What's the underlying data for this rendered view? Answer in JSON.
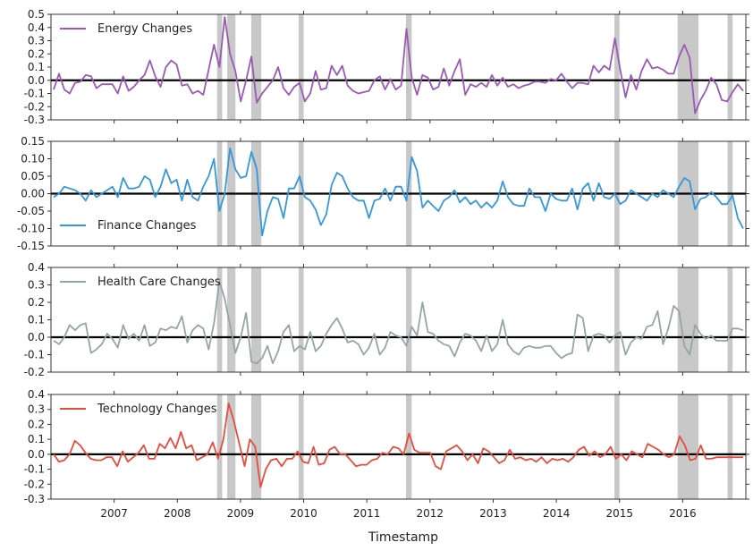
{
  "chart_data": {
    "type": "line",
    "x_axis": {
      "label": "Timestamp",
      "start": 2006.0,
      "end": 2017.0,
      "ticks": [
        "2007",
        "2008",
        "2009",
        "2010",
        "2011",
        "2012",
        "2013",
        "2014",
        "2015",
        "2016"
      ]
    },
    "shaded_periods": [
      [
        2008.63,
        2008.71
      ],
      [
        2008.79,
        2008.92
      ],
      [
        2009.17,
        2009.33
      ],
      [
        2009.92,
        2010.0
      ],
      [
        2011.62,
        2011.71
      ],
      [
        2014.92,
        2015.0
      ],
      [
        2015.92,
        2016.25
      ],
      [
        2016.71,
        2016.79
      ]
    ],
    "zero_line": true,
    "panels": [
      {
        "legend": "Energy Changes",
        "color": "#9b59b6",
        "ylim": [
          -0.3,
          0.5
        ],
        "yticks": [
          "-0.3",
          "-0.2",
          "-0.1",
          "0.0",
          "0.1",
          "0.2",
          "0.3",
          "0.4",
          "0.5"
        ],
        "values": [
          -0.07,
          0.05,
          -0.07,
          -0.1,
          -0.02,
          -0.01,
          0.04,
          0.03,
          -0.06,
          -0.03,
          -0.03,
          -0.03,
          -0.1,
          0.03,
          -0.08,
          -0.05,
          0.0,
          0.04,
          0.15,
          0.03,
          -0.05,
          0.1,
          0.15,
          0.12,
          -0.04,
          -0.03,
          -0.1,
          -0.08,
          -0.11,
          0.08,
          0.27,
          0.1,
          0.48,
          0.2,
          0.07,
          -0.16,
          0.0,
          0.18,
          -0.17,
          -0.1,
          -0.05,
          0.0,
          0.1,
          -0.06,
          -0.11,
          -0.05,
          -0.02,
          -0.16,
          -0.1,
          0.07,
          -0.07,
          -0.06,
          0.11,
          0.04,
          0.11,
          -0.04,
          -0.08,
          -0.1,
          -0.09,
          -0.08,
          0.0,
          0.03,
          -0.07,
          0.01,
          -0.07,
          -0.04,
          0.39,
          0.02,
          -0.11,
          0.04,
          0.02,
          -0.07,
          -0.05,
          0.09,
          -0.04,
          0.07,
          0.16,
          -0.11,
          -0.03,
          -0.05,
          -0.02,
          -0.05,
          0.04,
          -0.04,
          0.02,
          -0.05,
          -0.03,
          -0.06,
          -0.04,
          -0.03,
          -0.01,
          -0.01,
          -0.02,
          0.01,
          0.0,
          0.05,
          -0.01,
          -0.06,
          -0.02,
          -0.02,
          -0.03,
          0.11,
          0.06,
          0.11,
          0.08,
          0.32,
          0.08,
          -0.13,
          0.04,
          -0.07,
          0.07,
          0.16,
          0.09,
          0.1,
          0.08,
          0.05,
          0.05,
          0.18,
          0.27,
          0.17,
          -0.25,
          -0.15,
          -0.08,
          0.02,
          -0.03,
          -0.15,
          -0.16,
          -0.09,
          -0.03,
          -0.08
        ]
      },
      {
        "legend": "Finance Changes",
        "color": "#3498db",
        "ylim": [
          -0.15,
          0.15
        ],
        "yticks": [
          "-0.15",
          "-0.10",
          "-0.05",
          "0.00",
          "0.05",
          "0.10",
          "0.15"
        ],
        "values": [
          -0.01,
          0.0,
          0.02,
          0.015,
          0.01,
          0.0,
          -0.02,
          0.01,
          -0.01,
          0.0,
          0.01,
          0.02,
          -0.01,
          0.045,
          0.015,
          0.015,
          0.02,
          0.05,
          0.04,
          -0.01,
          0.02,
          0.07,
          0.03,
          0.04,
          -0.02,
          0.04,
          -0.01,
          -0.02,
          0.02,
          0.05,
          0.1,
          -0.05,
          0.0,
          0.13,
          0.07,
          0.045,
          0.05,
          0.12,
          0.07,
          -0.12,
          -0.05,
          -0.01,
          -0.015,
          -0.07,
          0.015,
          0.015,
          0.05,
          -0.01,
          -0.02,
          -0.045,
          -0.09,
          -0.06,
          0.025,
          0.06,
          0.05,
          0.015,
          -0.01,
          -0.02,
          -0.02,
          -0.07,
          -0.02,
          -0.015,
          0.015,
          -0.02,
          0.02,
          0.02,
          -0.02,
          0.105,
          0.065,
          -0.04,
          -0.02,
          -0.035,
          -0.05,
          -0.02,
          -0.01,
          0.01,
          -0.025,
          -0.01,
          -0.03,
          -0.02,
          -0.04,
          -0.025,
          -0.04,
          -0.02,
          0.035,
          -0.01,
          -0.03,
          -0.035,
          -0.035,
          0.015,
          -0.01,
          -0.01,
          -0.05,
          0.0,
          -0.015,
          -0.02,
          -0.02,
          0.015,
          -0.045,
          0.015,
          0.03,
          -0.02,
          0.03,
          -0.01,
          -0.015,
          0.0,
          -0.03,
          -0.02,
          0.01,
          0.0,
          -0.01,
          -0.02,
          0.0,
          -0.01,
          0.01,
          0.0,
          -0.01,
          0.02,
          0.045,
          0.035,
          -0.045,
          -0.015,
          -0.01,
          0.005,
          -0.01,
          -0.03,
          -0.03,
          -0.005,
          -0.07,
          -0.1
        ]
      },
      {
        "legend": "Health Care Changes",
        "color": "#95a5a6",
        "ylim": [
          -0.2,
          0.4
        ],
        "yticks": [
          "-0.2",
          "-0.1",
          "0.0",
          "0.1",
          "0.2",
          "0.3",
          "0.4"
        ],
        "values": [
          -0.02,
          -0.04,
          0.0,
          0.07,
          0.04,
          0.07,
          0.08,
          -0.09,
          -0.07,
          -0.04,
          0.02,
          -0.01,
          -0.06,
          0.07,
          -0.01,
          0.02,
          -0.02,
          0.07,
          -0.05,
          -0.03,
          0.05,
          0.04,
          0.06,
          0.05,
          0.12,
          -0.03,
          0.04,
          0.07,
          0.05,
          -0.07,
          0.08,
          0.32,
          0.22,
          0.07,
          -0.09,
          0.0,
          0.14,
          -0.14,
          -0.15,
          -0.12,
          -0.05,
          -0.15,
          -0.08,
          0.03,
          0.07,
          -0.08,
          -0.05,
          -0.07,
          0.03,
          -0.08,
          -0.05,
          0.02,
          0.07,
          0.11,
          0.05,
          -0.03,
          -0.02,
          -0.04,
          -0.1,
          -0.06,
          0.02,
          -0.1,
          -0.06,
          0.03,
          0.01,
          0.0,
          -0.05,
          0.06,
          0.01,
          0.2,
          0.03,
          0.02,
          -0.02,
          -0.04,
          -0.05,
          -0.11,
          -0.03,
          0.02,
          0.01,
          -0.02,
          -0.08,
          0.01,
          -0.08,
          -0.04,
          0.1,
          -0.04,
          -0.08,
          -0.1,
          -0.06,
          -0.05,
          -0.06,
          -0.06,
          -0.05,
          -0.05,
          -0.09,
          -0.12,
          -0.1,
          -0.09,
          0.13,
          0.11,
          -0.08,
          0.01,
          0.02,
          0.01,
          -0.03,
          0.01,
          0.03,
          -0.1,
          -0.03,
          0.0,
          -0.01,
          0.06,
          0.07,
          0.15,
          -0.04,
          0.05,
          0.18,
          0.15,
          -0.05,
          -0.1,
          0.07,
          0.02,
          -0.01,
          0.01,
          -0.02,
          -0.02,
          -0.02,
          0.05,
          0.05,
          0.04
        ]
      },
      {
        "legend": "Technology Changes",
        "color": "#e74c3c",
        "ylim": [
          -0.3,
          0.4
        ],
        "yticks": [
          "-0.3",
          "-0.2",
          "-0.1",
          "0.0",
          "0.1",
          "0.2",
          "0.3",
          "0.4"
        ],
        "values": [
          0.0,
          -0.05,
          -0.04,
          0.0,
          0.09,
          0.06,
          0.01,
          -0.03,
          -0.04,
          -0.04,
          -0.02,
          -0.02,
          -0.08,
          0.02,
          -0.05,
          -0.02,
          0.01,
          0.06,
          -0.03,
          -0.03,
          0.07,
          0.04,
          0.11,
          0.04,
          0.15,
          0.04,
          0.06,
          -0.04,
          -0.02,
          0.0,
          0.08,
          -0.03,
          0.1,
          0.34,
          0.22,
          0.07,
          -0.08,
          0.1,
          0.05,
          -0.22,
          -0.1,
          -0.04,
          -0.03,
          -0.08,
          -0.03,
          -0.03,
          0.02,
          -0.05,
          -0.06,
          0.05,
          -0.07,
          -0.06,
          0.03,
          0.05,
          0.0,
          0.0,
          -0.04,
          -0.08,
          -0.07,
          -0.07,
          -0.04,
          -0.03,
          0.01,
          0.0,
          0.05,
          0.04,
          0.0,
          0.14,
          0.03,
          0.01,
          0.01,
          0.01,
          -0.08,
          -0.1,
          0.02,
          0.04,
          0.06,
          0.02,
          -0.04,
          0.0,
          -0.06,
          0.04,
          0.02,
          -0.02,
          -0.06,
          -0.04,
          0.03,
          -0.03,
          -0.02,
          -0.04,
          -0.03,
          -0.05,
          -0.02,
          -0.06,
          -0.03,
          -0.04,
          -0.03,
          -0.05,
          -0.02,
          0.03,
          0.05,
          -0.01,
          0.02,
          -0.02,
          0.0,
          0.05,
          -0.03,
          0.0,
          -0.04,
          0.02,
          0.0,
          -0.02,
          0.07,
          0.05,
          0.03,
          0.0,
          -0.02,
          0.0,
          0.12,
          0.06,
          -0.04,
          -0.03,
          0.06,
          -0.03,
          -0.03,
          -0.02,
          -0.02,
          -0.02,
          -0.02,
          -0.02,
          -0.02
        ]
      }
    ]
  }
}
